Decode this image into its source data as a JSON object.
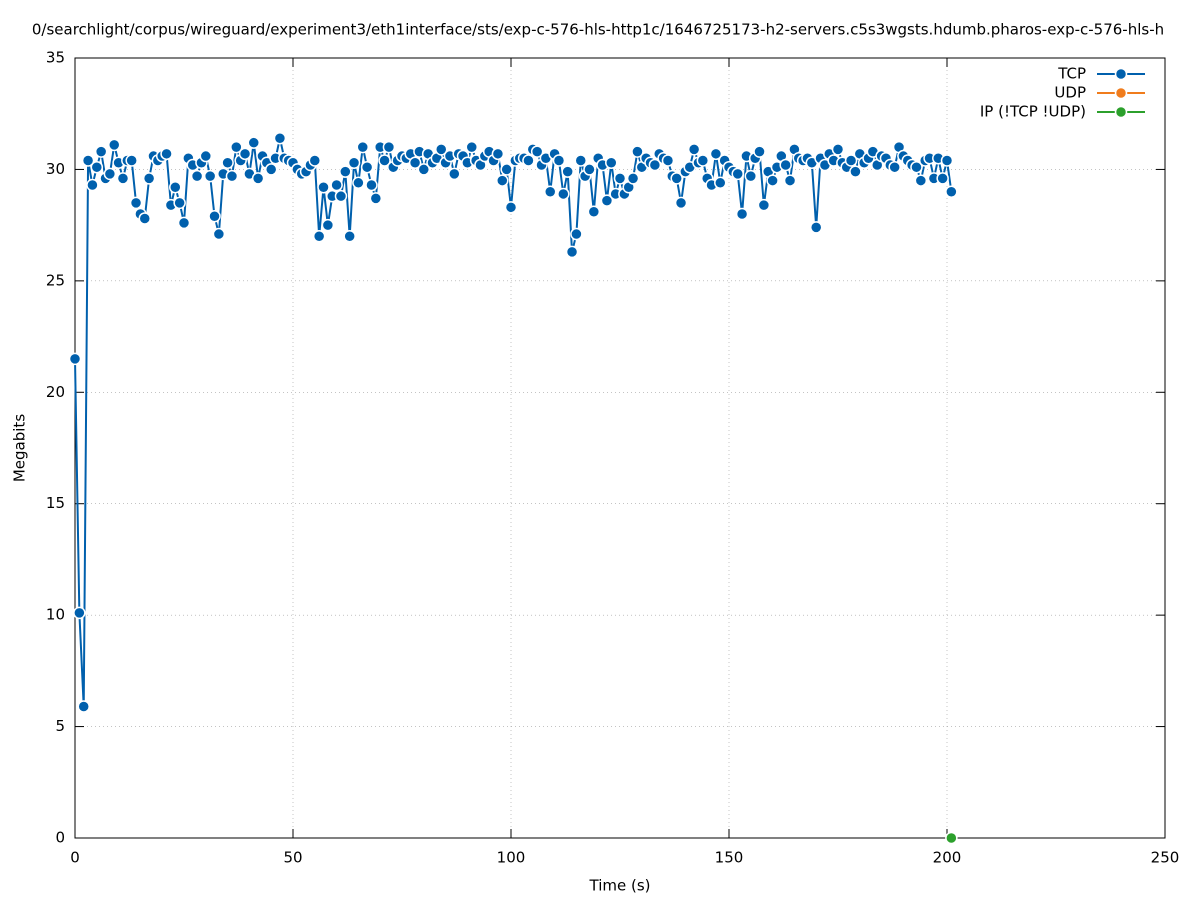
{
  "chart_data": {
    "type": "line",
    "title": "0/searchlight/corpus/wireguard/experiment3/eth1interface/sts/exp-c-576-hls-http1c/1646725173-h2-servers.c5s3wgsts.hdumb.pharos-exp-c-576-hls-h",
    "xlabel": "Time (s)",
    "ylabel": "Megabits",
    "xlim": [
      0,
      250
    ],
    "xticks": [
      0,
      50,
      100,
      150,
      200,
      250
    ],
    "ylim": [
      0,
      35
    ],
    "yticks": [
      0,
      5,
      10,
      15,
      20,
      25,
      30,
      35
    ],
    "grid": true,
    "legend": "top-right",
    "series": [
      {
        "name": "TCP",
        "color": "#0060ad",
        "x": [
          0,
          1,
          2,
          3,
          4,
          5,
          6,
          7,
          8,
          9,
          10,
          11,
          12,
          13,
          14,
          15,
          16,
          17,
          18,
          19,
          20,
          21,
          22,
          23,
          24,
          25,
          26,
          27,
          28,
          29,
          30,
          31,
          32,
          33,
          34,
          35,
          36,
          37,
          38,
          39,
          40,
          41,
          42,
          43,
          44,
          45,
          46,
          47,
          48,
          49,
          50,
          51,
          52,
          53,
          54,
          55,
          56,
          57,
          58,
          59,
          60,
          61,
          62,
          63,
          64,
          65,
          66,
          67,
          68,
          69,
          70,
          71,
          72,
          73,
          74,
          75,
          76,
          77,
          78,
          79,
          80,
          81,
          82,
          83,
          84,
          85,
          86,
          87,
          88,
          89,
          90,
          91,
          92,
          93,
          94,
          95,
          96,
          97,
          98,
          99,
          100,
          101,
          102,
          103,
          104,
          105,
          106,
          107,
          108,
          109,
          110,
          111,
          112,
          113,
          114,
          115,
          116,
          117,
          118,
          119,
          120,
          121,
          122,
          123,
          124,
          125,
          126,
          127,
          128,
          129,
          130,
          131,
          132,
          133,
          134,
          135,
          136,
          137,
          138,
          139,
          140,
          141,
          142,
          143,
          144,
          145,
          146,
          147,
          148,
          149,
          150,
          151,
          152,
          153,
          154,
          155,
          156,
          157,
          158,
          159,
          160,
          161,
          162,
          163,
          164,
          165,
          166,
          167,
          168,
          169,
          170,
          171,
          172,
          173,
          174,
          175,
          176,
          177,
          178,
          179,
          180,
          181,
          182,
          183,
          184,
          185,
          186,
          187,
          188,
          189,
          190,
          191,
          192,
          193,
          194,
          195,
          196,
          197,
          198,
          199,
          200,
          201
        ],
        "values": [
          21.5,
          10.1,
          5.9,
          30.4,
          29.3,
          30.1,
          30.8,
          29.6,
          29.8,
          31.1,
          30.3,
          29.6,
          30.4,
          30.4,
          28.5,
          28.0,
          27.8,
          29.6,
          30.6,
          30.4,
          30.6,
          30.7,
          28.4,
          29.2,
          28.5,
          27.6,
          30.5,
          30.2,
          29.7,
          30.3,
          30.6,
          29.7,
          27.9,
          27.1,
          29.8,
          30.3,
          29.7,
          31.0,
          30.4,
          30.7,
          29.8,
          31.2,
          29.6,
          30.6,
          30.3,
          30.0,
          30.5,
          31.4,
          30.5,
          30.4,
          30.3,
          30.0,
          29.8,
          29.9,
          30.2,
          30.4,
          27.0,
          29.2,
          27.5,
          28.8,
          29.3,
          28.8,
          29.9,
          27.0,
          30.3,
          29.4,
          31.0,
          30.1,
          29.3,
          28.7,
          31.0,
          30.4,
          31.0,
          30.1,
          30.4,
          30.6,
          30.5,
          30.7,
          30.3,
          30.8,
          30.0,
          30.7,
          30.3,
          30.5,
          30.9,
          30.3,
          30.6,
          29.8,
          30.7,
          30.6,
          30.3,
          31.0,
          30.4,
          30.2,
          30.6,
          30.8,
          30.4,
          30.7,
          29.5,
          30.0,
          28.3,
          30.4,
          30.5,
          30.5,
          30.4,
          30.9,
          30.8,
          30.2,
          30.5,
          29.0,
          30.7,
          30.4,
          28.9,
          29.9,
          26.3,
          27.1,
          30.4,
          29.7,
          30.0,
          28.1,
          30.5,
          30.2,
          28.6,
          30.3,
          28.9,
          29.6,
          28.9,
          29.2,
          29.6,
          30.8,
          30.1,
          30.5,
          30.3,
          30.2,
          30.7,
          30.5,
          30.4,
          29.7,
          29.6,
          28.5,
          29.9,
          30.1,
          30.9,
          30.3,
          30.4,
          29.6,
          29.3,
          30.7,
          29.4,
          30.4,
          30.1,
          29.9,
          29.8,
          28.0,
          30.6,
          29.7,
          30.5,
          30.8,
          28.4,
          29.9,
          29.5,
          30.1,
          30.6,
          30.2,
          29.5,
          30.9,
          30.5,
          30.4,
          30.5,
          30.3,
          27.4,
          30.5,
          30.2,
          30.7,
          30.4,
          30.9,
          30.3,
          30.1,
          30.4,
          29.9,
          30.7,
          30.3,
          30.5,
          30.8,
          30.2,
          30.6,
          30.5,
          30.2,
          30.1,
          31.0,
          30.6,
          30.4,
          30.2,
          30.1,
          29.5,
          30.4,
          30.5,
          29.6,
          30.5,
          29.6,
          30.4,
          29.0
        ]
      },
      {
        "name": "UDP",
        "color": "#f07c1c",
        "x": [],
        "values": []
      },
      {
        "name": "IP (!TCP  !UDP)",
        "color": "#2ca02c",
        "x": [
          201
        ],
        "values": [
          0
        ]
      }
    ]
  }
}
